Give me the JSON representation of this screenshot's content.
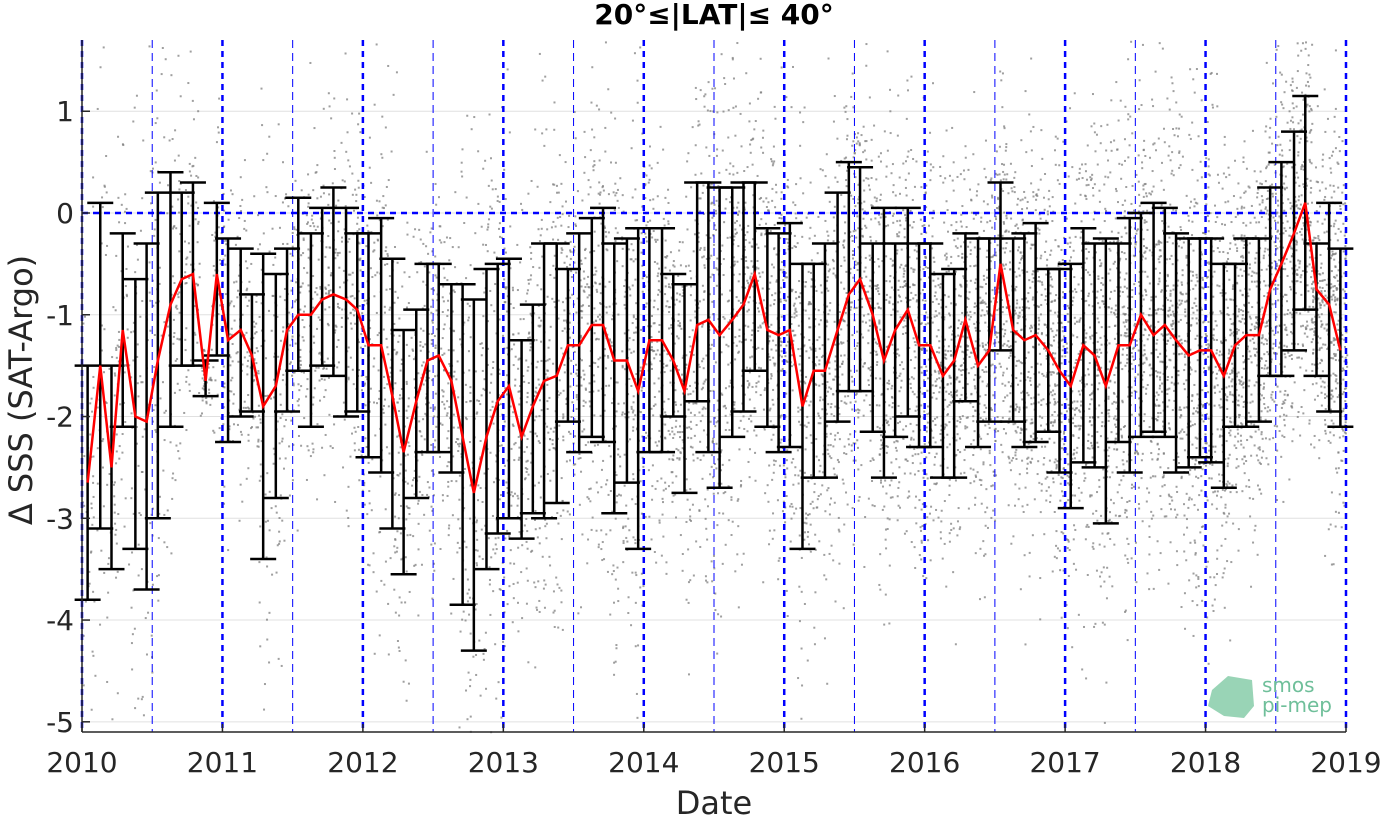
{
  "chart_data": {
    "type": "line",
    "title": "20°≤|LAT|≤ 40°",
    "xlabel": "Date",
    "ylabel": "Δ SSS (SAT-Argo)",
    "xlim": [
      2010.0,
      2019.0
    ],
    "ylim": [
      -5.1,
      1.7
    ],
    "x_ticks": [
      "2010",
      "2011",
      "2012",
      "2013",
      "2014",
      "2015",
      "2016",
      "2017",
      "2018",
      "2019"
    ],
    "y_ticks": [
      "1",
      "0",
      "-1",
      "-2",
      "-3",
      "-4",
      "-5"
    ],
    "y_tick_values": [
      1,
      0,
      -1,
      -2,
      -3,
      -4,
      -5
    ],
    "grid": true,
    "reference_line_y": 0,
    "year_lines": [
      2010,
      2011,
      2012,
      2013,
      2014,
      2015,
      2016,
      2017,
      2018,
      2019
    ],
    "midyear_lines": [
      2010.5,
      2011.5,
      2012.5,
      2013.5,
      2014.5,
      2015.5,
      2016.5,
      2017.5,
      2018.5
    ],
    "series": [
      {
        "color": "#ff0000",
        "x": [
          2010.04,
          2010.13,
          2010.21,
          2010.29,
          2010.38,
          2010.46,
          2010.54,
          2010.63,
          2010.71,
          2010.79,
          2010.88,
          2010.96,
          2011.04,
          2011.13,
          2011.21,
          2011.29,
          2011.38,
          2011.46,
          2011.54,
          2011.63,
          2011.71,
          2011.79,
          2011.88,
          2011.96,
          2012.04,
          2012.13,
          2012.21,
          2012.29,
          2012.38,
          2012.46,
          2012.54,
          2012.63,
          2012.71,
          2012.79,
          2012.88,
          2012.96,
          2013.04,
          2013.13,
          2013.21,
          2013.29,
          2013.38,
          2013.46,
          2013.54,
          2013.63,
          2013.71,
          2013.79,
          2013.88,
          2013.96,
          2014.04,
          2014.13,
          2014.21,
          2014.29,
          2014.38,
          2014.46,
          2014.54,
          2014.63,
          2014.71,
          2014.79,
          2014.88,
          2014.96,
          2015.04,
          2015.13,
          2015.21,
          2015.29,
          2015.38,
          2015.46,
          2015.54,
          2015.63,
          2015.71,
          2015.79,
          2015.88,
          2015.96,
          2016.04,
          2016.13,
          2016.21,
          2016.29,
          2016.38,
          2016.46,
          2016.54,
          2016.63,
          2016.71,
          2016.79,
          2016.88,
          2016.96,
          2017.04,
          2017.13,
          2017.21,
          2017.29,
          2017.38,
          2017.46,
          2017.54,
          2017.63,
          2017.71,
          2017.79,
          2017.88,
          2017.96,
          2018.04,
          2018.13,
          2018.21,
          2018.29,
          2018.38,
          2018.46,
          2018.54,
          2018.63,
          2018.71,
          2018.79,
          2018.88,
          2018.96
        ],
        "y": [
          -2.65,
          -1.5,
          -2.5,
          -1.15,
          -2.0,
          -2.05,
          -1.45,
          -0.9,
          -0.65,
          -0.6,
          -1.65,
          -0.6,
          -1.25,
          -1.15,
          -1.4,
          -1.9,
          -1.7,
          -1.15,
          -1.0,
          -1.0,
          -0.85,
          -0.8,
          -0.85,
          -0.95,
          -1.3,
          -1.3,
          -1.8,
          -2.35,
          -1.85,
          -1.45,
          -1.4,
          -1.65,
          -2.2,
          -2.75,
          -2.2,
          -1.85,
          -1.7,
          -2.2,
          -1.9,
          -1.65,
          -1.6,
          -1.3,
          -1.3,
          -1.1,
          -1.1,
          -1.45,
          -1.45,
          -1.75,
          -1.25,
          -1.25,
          -1.45,
          -1.75,
          -1.1,
          -1.05,
          -1.2,
          -1.05,
          -0.9,
          -0.6,
          -1.15,
          -1.2,
          -1.15,
          -1.9,
          -1.55,
          -1.55,
          -1.15,
          -0.8,
          -0.65,
          -1.0,
          -1.45,
          -1.15,
          -0.95,
          -1.3,
          -1.3,
          -1.6,
          -1.45,
          -1.05,
          -1.5,
          -1.35,
          -0.5,
          -1.15,
          -1.25,
          -1.2,
          -1.35,
          -1.55,
          -1.7,
          -1.3,
          -1.4,
          -1.7,
          -1.3,
          -1.3,
          -1.0,
          -1.2,
          -1.1,
          -1.25,
          -1.4,
          -1.35,
          -1.35,
          -1.6,
          -1.3,
          -1.2,
          -1.2,
          -0.75,
          -0.5,
          -0.2,
          0.1,
          -0.75,
          -0.9,
          -1.35
        ]
      }
    ],
    "error_bars": {
      "color": "#000000",
      "lower": [
        -3.8,
        -3.1,
        -3.5,
        -2.1,
        -3.3,
        -3.7,
        -3.0,
        -2.1,
        -1.5,
        -1.5,
        -1.8,
        -1.4,
        -2.25,
        -2.0,
        -1.95,
        -3.4,
        -2.8,
        -1.95,
        -1.55,
        -2.1,
        -1.5,
        -1.6,
        -2.0,
        -1.95,
        -2.4,
        -2.55,
        -3.1,
        -3.55,
        -2.8,
        -2.35,
        -2.35,
        -2.55,
        -3.85,
        -4.3,
        -3.5,
        -3.15,
        -3.0,
        -3.2,
        -2.95,
        -3.0,
        -2.85,
        -2.05,
        -2.35,
        -2.2,
        -2.25,
        -2.95,
        -2.65,
        -3.3,
        -2.35,
        -2.35,
        -2.0,
        -2.75,
        -1.85,
        -2.35,
        -2.7,
        -2.2,
        -1.95,
        -1.55,
        -2.1,
        -2.35,
        -2.3,
        -3.3,
        -2.6,
        -2.6,
        -2.05,
        -1.75,
        -1.75,
        -2.15,
        -2.6,
        -2.2,
        -2.0,
        -2.3,
        -2.3,
        -2.6,
        -2.6,
        -1.85,
        -2.3,
        -2.05,
        -1.35,
        -2.05,
        -2.3,
        -2.25,
        -2.15,
        -2.55,
        -2.9,
        -2.45,
        -2.5,
        -3.05,
        -2.25,
        -2.55,
        -2.2,
        -2.15,
        -2.2,
        -2.55,
        -2.5,
        -2.4,
        -2.45,
        -2.7,
        -2.1,
        -2.1,
        -2.05,
        -1.6,
        -1.6,
        -1.35,
        -0.95,
        -1.6,
        -1.95,
        -2.1
      ],
      "upper": [
        -1.5,
        0.1,
        -1.5,
        -0.2,
        -0.65,
        -0.3,
        0.2,
        0.4,
        0.2,
        0.3,
        -1.45,
        0.1,
        -0.25,
        -0.35,
        -0.8,
        -0.4,
        -0.6,
        -0.35,
        0.15,
        -0.2,
        0.05,
        0.25,
        0.05,
        -0.2,
        -0.2,
        -0.05,
        -0.45,
        -1.15,
        -0.95,
        -0.5,
        -0.5,
        -0.7,
        -0.7,
        -0.85,
        -0.55,
        -0.5,
        -0.45,
        -1.25,
        -0.9,
        -0.3,
        -0.3,
        -0.55,
        -0.2,
        -0.05,
        0.05,
        -0.3,
        -0.25,
        -0.15,
        -0.15,
        -0.15,
        -0.6,
        -0.7,
        0.3,
        0.3,
        0.25,
        0.25,
        0.3,
        0.3,
        -0.15,
        -0.2,
        -0.1,
        -0.5,
        -0.5,
        -0.3,
        0.2,
        0.5,
        0.45,
        -0.3,
        0.05,
        -0.3,
        0.05,
        -0.3,
        -0.3,
        -0.6,
        -0.55,
        -0.2,
        -0.25,
        -0.25,
        0.3,
        -0.25,
        -0.2,
        -0.1,
        -0.55,
        -0.55,
        -0.5,
        -0.15,
        -0.3,
        -0.25,
        -0.3,
        -0.05,
        0.0,
        0.1,
        0.05,
        -0.2,
        -0.25,
        -0.25,
        -0.25,
        -0.5,
        -0.5,
        -0.25,
        -0.25,
        0.25,
        0.5,
        0.8,
        1.15,
        -0.3,
        0.1,
        -0.35
      ]
    },
    "scatter_color": "#7f7f7f",
    "logo_text": [
      "smos",
      "pi-mep"
    ]
  }
}
